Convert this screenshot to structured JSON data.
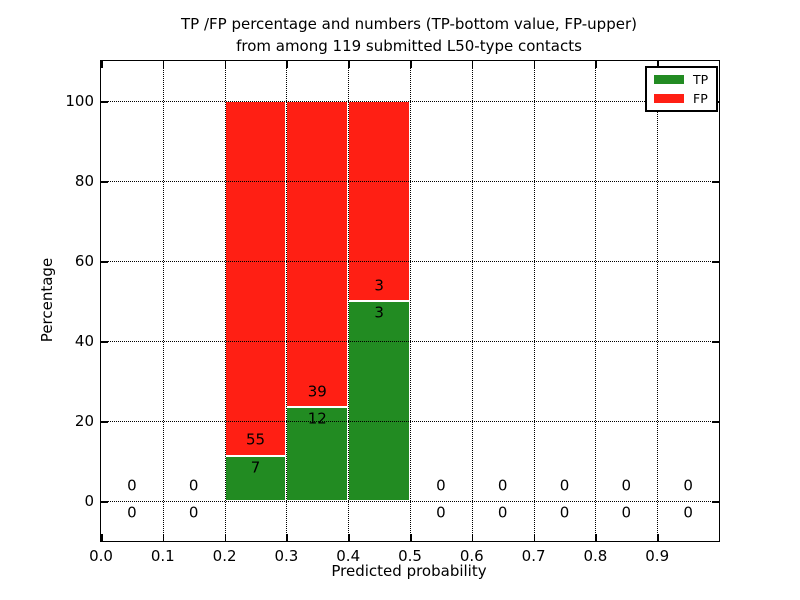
{
  "figure": {
    "title_line1": "TP /FP percentage and numbers (TP-bottom value, FP-upper)",
    "title_line2": "from among 119 submitted L50-type contacts",
    "xlabel": "Predicted probability",
    "ylabel": "Percentage"
  },
  "chart_data": {
    "type": "bar",
    "stacked": true,
    "title": "TP /FP percentage and numbers (TP-bottom value, FP-upper)\nfrom among 119 submitted L50-type contacts",
    "xlabel": "Predicted probability",
    "ylabel": "Percentage",
    "xlim": [
      0.0,
      1.0
    ],
    "ylim": [
      -10,
      110
    ],
    "x_tick_labels": [
      "0.0",
      "0.1",
      "0.2",
      "0.3",
      "0.4",
      "0.5",
      "0.6",
      "0.7",
      "0.8",
      "0.9"
    ],
    "x_tick_values": [
      0.0,
      0.1,
      0.2,
      0.3,
      0.4,
      0.5,
      0.6,
      0.7,
      0.8,
      0.9
    ],
    "y_tick_labels": [
      "0",
      "20",
      "40",
      "60",
      "80",
      "100"
    ],
    "y_tick_values": [
      0,
      20,
      40,
      60,
      80,
      100
    ],
    "grid": "dotted black, both axes, drawn above bars",
    "legend_position": "upper right",
    "legend": {
      "entries": [
        {
          "label": "TP",
          "color": "#228b22"
        },
        {
          "label": "FP",
          "color": "#ff1f14"
        }
      ]
    },
    "total_submitted_contacts": 119,
    "bins": [
      {
        "x_start": 0.0,
        "x_end": 0.1,
        "tp_count": 0,
        "fp_count": 0,
        "tp_pct": 0,
        "fp_pct": 0
      },
      {
        "x_start": 0.1,
        "x_end": 0.2,
        "tp_count": 0,
        "fp_count": 0,
        "tp_pct": 0,
        "fp_pct": 0
      },
      {
        "x_start": 0.2,
        "x_end": 0.3,
        "tp_count": 7,
        "fp_count": 55,
        "tp_pct": 11.3,
        "fp_pct": 88.7
      },
      {
        "x_start": 0.3,
        "x_end": 0.4,
        "tp_count": 12,
        "fp_count": 39,
        "tp_pct": 23.5,
        "fp_pct": 76.5
      },
      {
        "x_start": 0.4,
        "x_end": 0.5,
        "tp_count": 3,
        "fp_count": 3,
        "tp_pct": 50.0,
        "fp_pct": 50.0
      },
      {
        "x_start": 0.5,
        "x_end": 0.6,
        "tp_count": 0,
        "fp_count": 0,
        "tp_pct": 0,
        "fp_pct": 0
      },
      {
        "x_start": 0.6,
        "x_end": 0.7,
        "tp_count": 0,
        "fp_count": 0,
        "tp_pct": 0,
        "fp_pct": 0
      },
      {
        "x_start": 0.7,
        "x_end": 0.8,
        "tp_count": 0,
        "fp_count": 0,
        "tp_pct": 0,
        "fp_pct": 0
      },
      {
        "x_start": 0.8,
        "x_end": 0.9,
        "tp_count": 0,
        "fp_count": 0,
        "tp_pct": 0,
        "fp_pct": 0
      },
      {
        "x_start": 0.9,
        "x_end": 1.0,
        "tp_count": 0,
        "fp_count": 0,
        "tp_pct": 0,
        "fp_pct": 0
      }
    ],
    "colors": {
      "tp": "#228b22",
      "fp": "#ff1f14",
      "bar_edge": "#ffffff",
      "grid": "#000000",
      "text": "#000000",
      "background": "#ffffff"
    }
  }
}
